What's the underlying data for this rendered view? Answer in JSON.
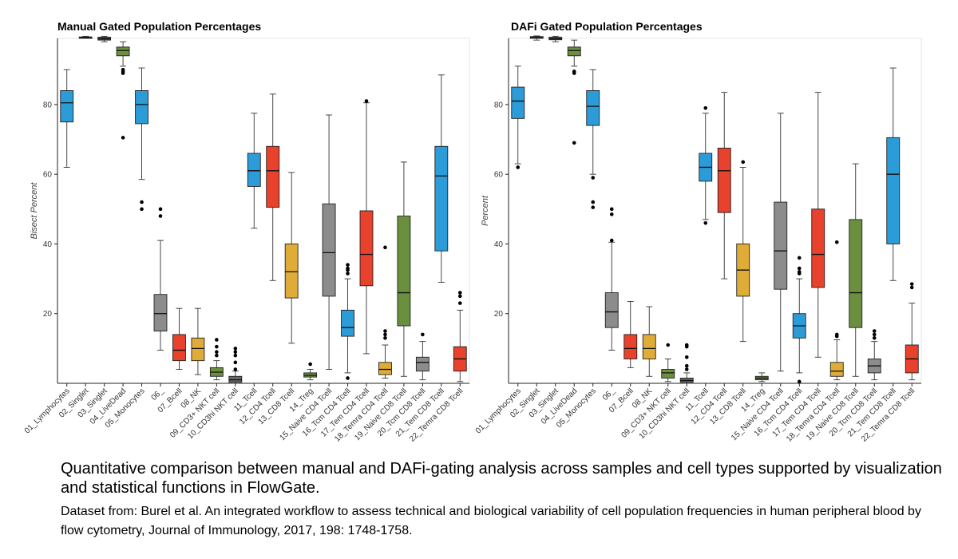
{
  "chart_data": [
    {
      "type": "box",
      "title": "Manual Gated Population Percentages",
      "ylabel": "Bisect Percent",
      "ylim": [
        0,
        99
      ],
      "yticks": [
        20,
        40,
        60,
        80
      ],
      "categories": [
        "01_Lymphocytes",
        "02_Singlet",
        "03_Singlet",
        "04_LiveDead",
        "05_Monocytes",
        "06_",
        "07_Bcell",
        "08_NK",
        "09_CD3+ NKT cell",
        "10_CD3hi NKT cell",
        "11_Tcell",
        "12_CD4 Tcell",
        "13_CD8 Tcell",
        "14_Treg",
        "15_Naive CD4 Tcell",
        "16_Tcm CD4 Tcell",
        "17_Tem CD4 Tcell",
        "18_Temra CD4 Tcell",
        "19_Naive CD8 Tcell",
        "20_Tcm CD8 Tcell",
        "21_Tem CD8 Tcell",
        "22_Temra CD8 Tcell"
      ],
      "boxes": [
        {
          "min": 62,
          "q1": 75,
          "median": 80.5,
          "q3": 84,
          "max": 90,
          "outliers": [],
          "color": "#2b9cd8"
        },
        {
          "min": 99,
          "q1": 99,
          "median": 99.2,
          "q3": 99.4,
          "max": 99.6,
          "outliers": [],
          "color": "#e8412c"
        },
        {
          "min": 98,
          "q1": 98.5,
          "median": 99,
          "q3": 99.3,
          "max": 99.6,
          "outliers": [],
          "color": "#3c3c3c"
        },
        {
          "min": 91,
          "q1": 94,
          "median": 95.5,
          "q3": 96.5,
          "max": 98,
          "outliers": [
            90,
            89.5,
            89,
            70.5
          ],
          "color": "#6a8f3f"
        },
        {
          "min": 58.5,
          "q1": 74.5,
          "median": 80,
          "q3": 84,
          "max": 90.5,
          "outliers": [
            52,
            50
          ],
          "color": "#2b9cd8"
        },
        {
          "min": 9.5,
          "q1": 15,
          "median": 20,
          "q3": 25.5,
          "max": 41,
          "outliers": [
            50,
            48
          ],
          "color": "#8c8c8c"
        },
        {
          "min": 4,
          "q1": 6.5,
          "median": 9.5,
          "q3": 14,
          "max": 21.5,
          "outliers": [],
          "color": "#e8412c"
        },
        {
          "min": 2.5,
          "q1": 6.5,
          "median": 10,
          "q3": 13,
          "max": 21.5,
          "outliers": [],
          "color": "#e0ac38"
        },
        {
          "min": 1,
          "q1": 2,
          "median": 3.2,
          "q3": 4.5,
          "max": 6.5,
          "outliers": [
            8,
            9,
            10.5,
            12.5
          ],
          "color": "#6a8f3f"
        },
        {
          "min": 0,
          "q1": 0.3,
          "median": 1,
          "q3": 2,
          "max": 3.5,
          "outliers": [
            4,
            6,
            8,
            9,
            10
          ],
          "color": "#666666"
        },
        {
          "min": 44.5,
          "q1": 56.5,
          "median": 61,
          "q3": 66,
          "max": 77.5,
          "outliers": [],
          "color": "#2b9cd8"
        },
        {
          "min": 29.5,
          "q1": 50.5,
          "median": 61,
          "q3": 68,
          "max": 83,
          "outliers": [],
          "color": "#e8412c"
        },
        {
          "min": 11.5,
          "q1": 24.5,
          "median": 32,
          "q3": 40,
          "max": 60.5,
          "outliers": [],
          "color": "#e0ac38"
        },
        {
          "min": 1,
          "q1": 1.8,
          "median": 2.3,
          "q3": 3,
          "max": 4,
          "outliers": [
            5.5
          ],
          "color": "#6a8f3f"
        },
        {
          "min": 4,
          "q1": 25,
          "median": 37.5,
          "q3": 51.5,
          "max": 77,
          "outliers": [],
          "color": "#8c8c8c"
        },
        {
          "min": 3,
          "q1": 13.5,
          "median": 16,
          "q3": 21,
          "max": 30,
          "outliers": [
            31.5,
            32.5,
            33,
            34,
            1.5
          ],
          "color": "#2b9cd8"
        },
        {
          "min": 8.5,
          "q1": 28,
          "median": 37,
          "q3": 49.5,
          "max": 80.5,
          "outliers": [
            81
          ],
          "color": "#e8412c"
        },
        {
          "min": 1.5,
          "q1": 2.5,
          "median": 4,
          "q3": 6,
          "max": 11,
          "outliers": [
            13,
            14,
            15,
            39
          ],
          "color": "#e0ac38"
        },
        {
          "min": 2,
          "q1": 16.5,
          "median": 26,
          "q3": 48,
          "max": 63.5,
          "outliers": [],
          "color": "#6a8f3f"
        },
        {
          "min": 1,
          "q1": 3.5,
          "median": 6,
          "q3": 7.5,
          "max": 12,
          "outliers": [
            14
          ],
          "color": "#8c8c8c"
        },
        {
          "min": 29,
          "q1": 38,
          "median": 59.5,
          "q3": 68,
          "max": 88.5,
          "outliers": [],
          "color": "#2b9cd8"
        },
        {
          "min": 0.5,
          "q1": 3.5,
          "median": 7,
          "q3": 10.5,
          "max": 21,
          "outliers": [
            23,
            25,
            26
          ],
          "color": "#e8412c"
        }
      ]
    },
    {
      "type": "box",
      "title": "DAFi Gated Population Percentages",
      "ylabel": "Percent",
      "ylim": [
        0,
        99
      ],
      "yticks": [
        20,
        40,
        60,
        80
      ],
      "categories": [
        "01_Lymphocytes",
        "02_Singlet",
        "03_Singlet",
        "04_LiveDead",
        "05_Monocytes",
        "06_",
        "07_Bcell",
        "08_NK",
        "09_CD3+ NKT cell",
        "10_CD3hi NKT cell",
        "11_Tcell",
        "12_CD4 Tcell",
        "13_CD8 Tcell",
        "14_Treg",
        "15_Naive CD4 Tcell",
        "16_Tcm CD4 Tcell",
        "17_Tem CD4 Tcell",
        "18_Temra CD4 Tcell",
        "19_Naive CD8 Tcell",
        "20_Tcm CD8 Tcell",
        "21_Tem CD8 Tcell",
        "22_Temra CD8 Tcell"
      ],
      "boxes": [
        {
          "min": 63,
          "q1": 76,
          "median": 81,
          "q3": 85,
          "max": 91,
          "outliers": [
            62
          ],
          "color": "#2b9cd8"
        },
        {
          "min": 98.5,
          "q1": 99,
          "median": 99.3,
          "q3": 99.5,
          "max": 99.7,
          "outliers": [],
          "color": "#e8412c"
        },
        {
          "min": 98,
          "q1": 98.6,
          "median": 99,
          "q3": 99.3,
          "max": 99.6,
          "outliers": [],
          "color": "#3c3c3c"
        },
        {
          "min": 91,
          "q1": 94,
          "median": 95.5,
          "q3": 96.5,
          "max": 98.5,
          "outliers": [
            89.5,
            89,
            69
          ],
          "color": "#6a8f3f"
        },
        {
          "min": 60,
          "q1": 74,
          "median": 79.5,
          "q3": 84,
          "max": 90,
          "outliers": [
            59,
            52,
            50.5
          ],
          "color": "#2b9cd8"
        },
        {
          "min": 9.5,
          "q1": 16,
          "median": 20.5,
          "q3": 26,
          "max": 40.5,
          "outliers": [
            41,
            48.5,
            50
          ],
          "color": "#8c8c8c"
        },
        {
          "min": 4.5,
          "q1": 7,
          "median": 10,
          "q3": 14,
          "max": 23.5,
          "outliers": [],
          "color": "#e8412c"
        },
        {
          "min": 2,
          "q1": 7,
          "median": 10,
          "q3": 14,
          "max": 22,
          "outliers": [],
          "color": "#e0ac38"
        },
        {
          "min": 0.5,
          "q1": 1.5,
          "median": 3,
          "q3": 4,
          "max": 7,
          "outliers": [
            11
          ],
          "color": "#6a8f3f"
        },
        {
          "min": 0,
          "q1": 0.3,
          "median": 0.8,
          "q3": 1.5,
          "max": 3,
          "outliers": [
            4,
            5,
            7.5,
            10.5,
            11
          ],
          "color": "#666666"
        },
        {
          "min": 47,
          "q1": 58,
          "median": 62,
          "q3": 66,
          "max": 77.5,
          "outliers": [
            46,
            79
          ],
          "color": "#2b9cd8"
        },
        {
          "min": 30,
          "q1": 49,
          "median": 61,
          "q3": 67.5,
          "max": 83.5,
          "outliers": [],
          "color": "#e8412c"
        },
        {
          "min": 12,
          "q1": 25,
          "median": 32.5,
          "q3": 40,
          "max": 62,
          "outliers": [
            63.5
          ],
          "color": "#e0ac38"
        },
        {
          "min": 0.5,
          "q1": 1,
          "median": 1.5,
          "q3": 2,
          "max": 3,
          "outliers": [],
          "color": "#6a8f3f"
        },
        {
          "min": 3.5,
          "q1": 27,
          "median": 38,
          "q3": 52,
          "max": 77.5,
          "outliers": [],
          "color": "#8c8c8c"
        },
        {
          "min": 3,
          "q1": 13,
          "median": 16.5,
          "q3": 20,
          "max": 30,
          "outliers": [
            31.5,
            32,
            33,
            36,
            0.5
          ],
          "color": "#2b9cd8"
        },
        {
          "min": 7.5,
          "q1": 27.5,
          "median": 37,
          "q3": 50,
          "max": 83.5,
          "outliers": [],
          "color": "#e8412c"
        },
        {
          "min": 1,
          "q1": 2,
          "median": 3.5,
          "q3": 6,
          "max": 12.5,
          "outliers": [
            13.5,
            14,
            40.5
          ],
          "color": "#e0ac38"
        },
        {
          "min": 2,
          "q1": 16,
          "median": 26,
          "q3": 47,
          "max": 63,
          "outliers": [],
          "color": "#6a8f3f"
        },
        {
          "min": 1,
          "q1": 3,
          "median": 5,
          "q3": 7,
          "max": 12,
          "outliers": [
            13,
            14,
            15
          ],
          "color": "#8c8c8c"
        },
        {
          "min": 29.5,
          "q1": 40,
          "median": 60,
          "q3": 70.5,
          "max": 90.5,
          "outliers": [],
          "color": "#2b9cd8"
        },
        {
          "min": 1,
          "q1": 3,
          "median": 7,
          "q3": 11,
          "max": 23,
          "outliers": [
            27.5,
            28.5
          ],
          "color": "#e8412c"
        }
      ]
    }
  ],
  "caption": {
    "main": "Quantitative comparison between manual and DAFi-gating analysis across samples and cell types supported by visualization and statistical functions in FlowGate.",
    "sub": "Dataset from: Burel et al. An integrated workflow to assess technical and biological variability of cell population frequencies in human peripheral blood by flow cytometry, Journal of Immunology, 2017, 198: 1748-1758."
  }
}
